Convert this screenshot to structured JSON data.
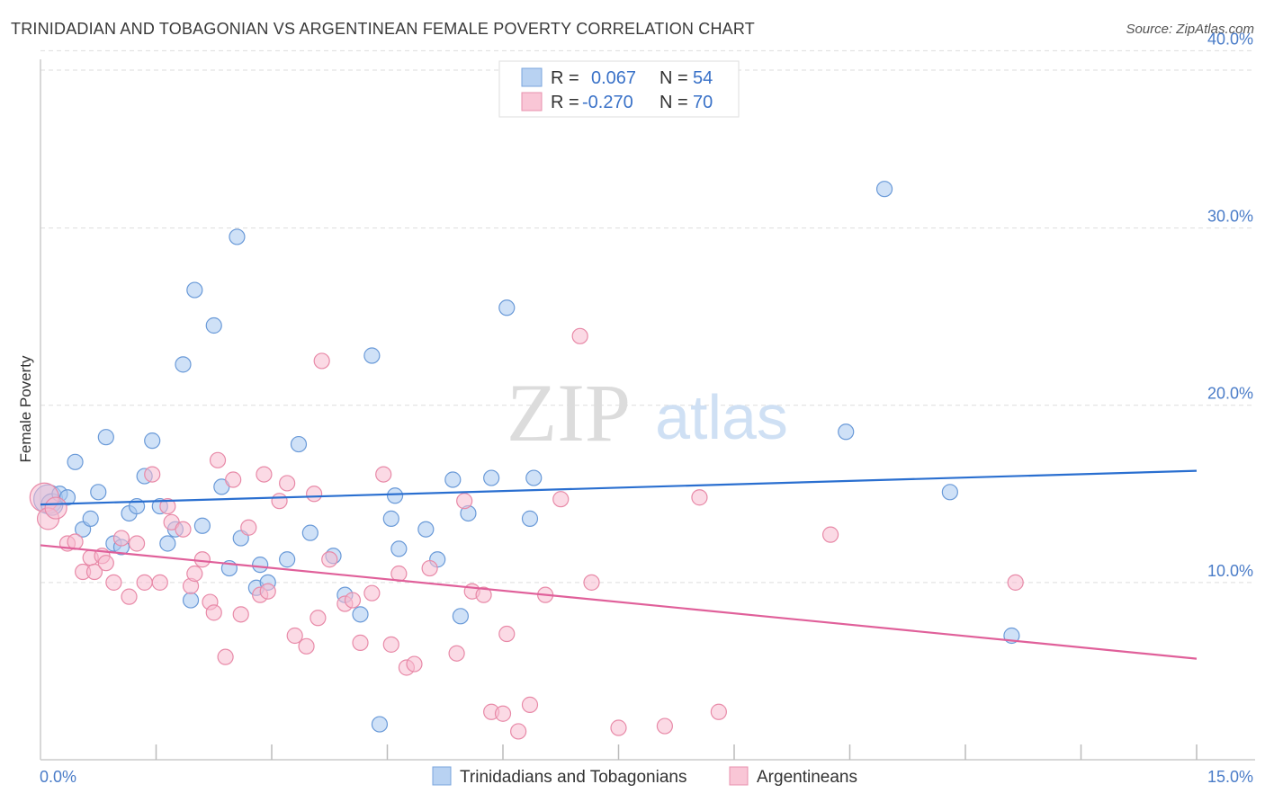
{
  "title": "TRINIDADIAN AND TOBAGONIAN VS ARGENTINEAN FEMALE POVERTY CORRELATION CHART",
  "source": "Source: ZipAtlas.com",
  "watermark": {
    "zip": "ZIP",
    "atlas": "atlas"
  },
  "legend": {
    "rows": [
      {
        "r_label": "R =",
        "r_value": "0.067",
        "n_label": "N =",
        "n_value": "54"
      },
      {
        "r_label": "R =",
        "r_value": "-0.270",
        "n_label": "N =",
        "n_value": "70"
      }
    ]
  },
  "chart_data": {
    "type": "scatter",
    "title": "TRINIDADIAN AND TOBAGONIAN VS ARGENTINEAN FEMALE POVERTY CORRELATION CHART",
    "xlabel": "",
    "ylabel": "Female Poverty",
    "xlim": [
      0,
      15
    ],
    "ylim": [
      0,
      42
    ],
    "x_tick_labels": [
      "0.0%",
      "15.0%"
    ],
    "y_ticks": [
      10,
      20,
      30,
      40
    ],
    "y_tick_labels": [
      "10.0%",
      "20.0%",
      "30.0%",
      "40.0%"
    ],
    "grid": "horizontal dashed",
    "legend_position": "bottom",
    "series": [
      {
        "name": "Trinidadians and Tobagonians",
        "color": "#a8c8f0",
        "stroke": "#6a9ad8",
        "line_color": "#2a6fd0",
        "trend": [
          [
            0,
            14.4
          ],
          [
            15,
            16.3
          ]
        ],
        "points": [
          [
            0.1,
            14.7
          ],
          [
            0.15,
            14.4
          ],
          [
            0.25,
            15.0
          ],
          [
            0.35,
            14.8
          ],
          [
            0.45,
            16.8
          ],
          [
            0.55,
            13.0
          ],
          [
            0.65,
            13.6
          ],
          [
            0.75,
            15.1
          ],
          [
            0.85,
            18.2
          ],
          [
            0.95,
            12.2
          ],
          [
            1.05,
            12.0
          ],
          [
            1.15,
            13.9
          ],
          [
            1.25,
            14.3
          ],
          [
            1.35,
            16.0
          ],
          [
            1.45,
            18.0
          ],
          [
            1.55,
            14.3
          ],
          [
            1.65,
            12.2
          ],
          [
            1.75,
            13.0
          ],
          [
            1.85,
            22.3
          ],
          [
            1.95,
            9.0
          ],
          [
            2.0,
            26.5
          ],
          [
            2.1,
            13.2
          ],
          [
            2.25,
            24.5
          ],
          [
            2.35,
            15.4
          ],
          [
            2.45,
            10.8
          ],
          [
            2.55,
            29.5
          ],
          [
            2.6,
            12.5
          ],
          [
            2.8,
            9.7
          ],
          [
            2.85,
            11.0
          ],
          [
            2.95,
            10.0
          ],
          [
            3.2,
            11.3
          ],
          [
            3.35,
            17.8
          ],
          [
            3.5,
            12.8
          ],
          [
            3.8,
            11.5
          ],
          [
            3.95,
            9.3
          ],
          [
            4.15,
            8.2
          ],
          [
            4.3,
            22.8
          ],
          [
            4.4,
            2.0
          ],
          [
            4.55,
            13.6
          ],
          [
            4.6,
            14.9
          ],
          [
            4.65,
            11.9
          ],
          [
            5.0,
            13.0
          ],
          [
            5.15,
            11.3
          ],
          [
            5.35,
            15.8
          ],
          [
            5.45,
            8.1
          ],
          [
            5.55,
            13.9
          ],
          [
            5.85,
            15.9
          ],
          [
            6.05,
            25.5
          ],
          [
            6.35,
            13.6
          ],
          [
            6.4,
            15.9
          ],
          [
            10.45,
            18.5
          ],
          [
            10.95,
            32.2
          ],
          [
            11.8,
            15.1
          ],
          [
            12.6,
            7.0
          ]
        ]
      },
      {
        "name": "Argentineans",
        "color": "#f8bcd0",
        "stroke": "#e88aa8",
        "line_color": "#e0609a",
        "trend": [
          [
            0,
            12.1
          ],
          [
            15,
            5.7
          ]
        ],
        "points": [
          [
            0.05,
            14.8
          ],
          [
            0.1,
            13.6
          ],
          [
            0.2,
            14.2
          ],
          [
            0.35,
            12.2
          ],
          [
            0.45,
            12.3
          ],
          [
            0.55,
            10.6
          ],
          [
            0.65,
            11.4
          ],
          [
            0.7,
            10.6
          ],
          [
            0.8,
            11.5
          ],
          [
            0.85,
            11.1
          ],
          [
            0.95,
            10.0
          ],
          [
            1.05,
            12.5
          ],
          [
            1.15,
            9.2
          ],
          [
            1.25,
            12.2
          ],
          [
            1.35,
            10.0
          ],
          [
            1.45,
            16.1
          ],
          [
            1.55,
            10.0
          ],
          [
            1.65,
            14.3
          ],
          [
            1.7,
            13.4
          ],
          [
            1.85,
            13.0
          ],
          [
            1.95,
            9.8
          ],
          [
            2.0,
            10.5
          ],
          [
            2.1,
            11.3
          ],
          [
            2.2,
            8.9
          ],
          [
            2.25,
            8.3
          ],
          [
            2.3,
            16.9
          ],
          [
            2.4,
            5.8
          ],
          [
            2.5,
            15.8
          ],
          [
            2.6,
            8.2
          ],
          [
            2.7,
            13.1
          ],
          [
            2.85,
            9.3
          ],
          [
            2.9,
            16.1
          ],
          [
            2.95,
            9.5
          ],
          [
            3.1,
            14.6
          ],
          [
            3.2,
            15.6
          ],
          [
            3.3,
            7.0
          ],
          [
            3.45,
            6.4
          ],
          [
            3.55,
            15.0
          ],
          [
            3.6,
            8.0
          ],
          [
            3.65,
            22.5
          ],
          [
            3.75,
            11.3
          ],
          [
            3.95,
            8.8
          ],
          [
            4.05,
            9.0
          ],
          [
            4.15,
            6.6
          ],
          [
            4.3,
            9.4
          ],
          [
            4.45,
            16.1
          ],
          [
            4.55,
            6.5
          ],
          [
            4.65,
            10.5
          ],
          [
            4.75,
            5.2
          ],
          [
            4.85,
            5.4
          ],
          [
            5.05,
            10.8
          ],
          [
            5.4,
            6.0
          ],
          [
            5.5,
            14.6
          ],
          [
            5.6,
            9.5
          ],
          [
            5.75,
            9.3
          ],
          [
            5.85,
            2.7
          ],
          [
            6.0,
            2.6
          ],
          [
            6.05,
            7.1
          ],
          [
            6.2,
            1.6
          ],
          [
            6.35,
            3.1
          ],
          [
            6.55,
            9.3
          ],
          [
            6.75,
            14.7
          ],
          [
            7.0,
            23.9
          ],
          [
            7.15,
            10.0
          ],
          [
            7.5,
            1.8
          ],
          [
            8.1,
            1.9
          ],
          [
            8.55,
            14.8
          ],
          [
            8.8,
            2.7
          ],
          [
            10.25,
            12.7
          ],
          [
            12.65,
            10.0
          ]
        ]
      }
    ]
  }
}
